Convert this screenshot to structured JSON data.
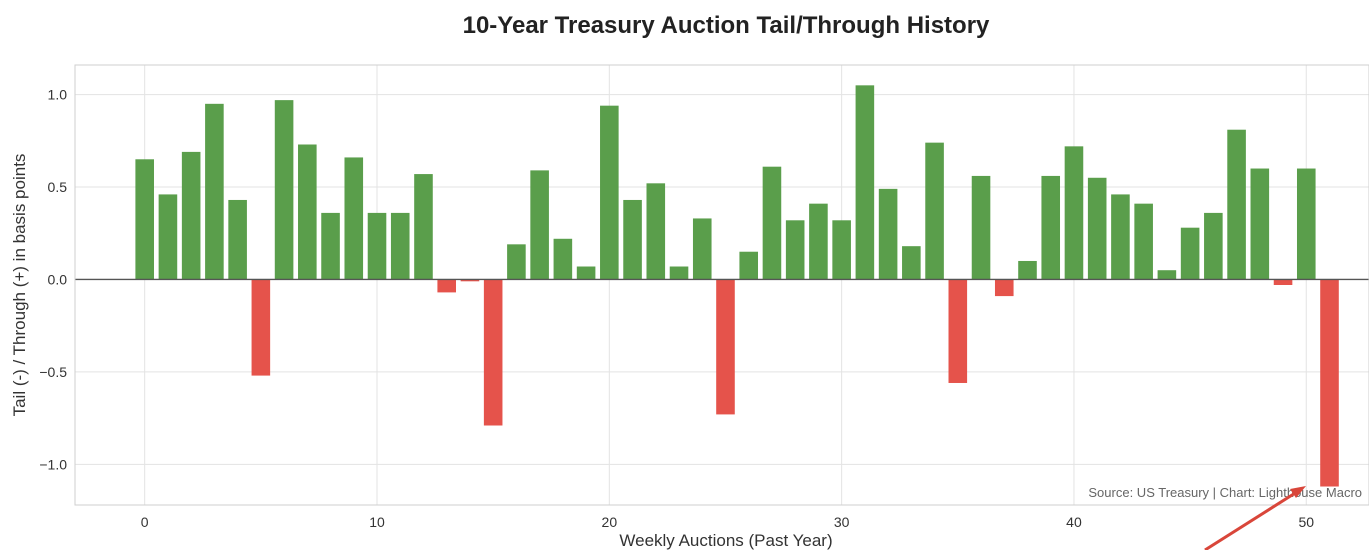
{
  "chart_data": {
    "type": "bar",
    "title": "10-Year Treasury Auction Tail/Through History",
    "xlabel": "Weekly Auctions (Past Year)",
    "ylabel": "Tail (-) / Through (+) in basis points",
    "x": [
      0,
      1,
      2,
      3,
      4,
      5,
      6,
      7,
      8,
      9,
      10,
      11,
      12,
      13,
      14,
      15,
      16,
      17,
      18,
      19,
      20,
      21,
      22,
      23,
      24,
      25,
      26,
      27,
      28,
      29,
      30,
      31,
      32,
      33,
      34,
      35,
      36,
      37,
      38,
      39,
      40,
      41,
      42,
      43,
      44,
      45,
      46,
      47,
      48,
      49,
      50,
      51
    ],
    "values": [
      0.65,
      0.46,
      0.69,
      0.95,
      0.43,
      -0.52,
      0.97,
      0.73,
      0.36,
      0.66,
      0.36,
      0.36,
      0.57,
      -0.07,
      -0.01,
      -0.79,
      0.19,
      0.59,
      0.22,
      0.07,
      0.94,
      0.43,
      0.52,
      0.07,
      0.33,
      -0.73,
      0.15,
      0.61,
      0.32,
      0.41,
      0.32,
      1.05,
      0.49,
      0.18,
      0.74,
      -0.56,
      0.56,
      -0.09,
      0.1,
      0.56,
      0.72,
      0.55,
      0.46,
      0.41,
      0.05,
      0.28,
      0.36,
      0.81,
      0.6,
      -0.03,
      0.6,
      -1.12
    ],
    "xticks": [
      0,
      10,
      20,
      30,
      40,
      50
    ],
    "yticks": [
      -1.0,
      -0.5,
      0.0,
      0.5,
      1.0
    ],
    "ytick_labels": [
      "−1.0",
      "−0.5",
      "0.0",
      "0.5",
      "1.0"
    ],
    "xlim": [
      -3,
      52.7
    ],
    "ylim": [
      -1.22,
      1.16
    ],
    "grid": true,
    "colors": {
      "positive": "#5a9e4b",
      "negative": "#e5534b",
      "arrow": "#d9463a"
    },
    "annotation": "Source: US Treasury | Chart: Lighthouse Macro"
  }
}
